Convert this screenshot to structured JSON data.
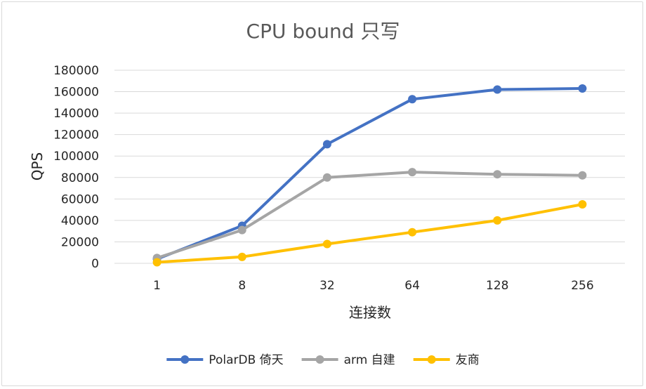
{
  "chart_data": {
    "type": "line",
    "title": "CPU bound 只写",
    "xlabel": "连接数",
    "ylabel": "QPS",
    "categories": [
      "1",
      "8",
      "32",
      "64",
      "128",
      "256"
    ],
    "ylim": [
      0,
      180000
    ],
    "yticks": [
      0,
      20000,
      40000,
      60000,
      80000,
      100000,
      120000,
      140000,
      160000,
      180000
    ],
    "ytick_labels": [
      "0",
      "20000",
      "40000",
      "60000",
      "80000",
      "100000",
      "120000",
      "140000",
      "160000",
      "180000"
    ],
    "grid": true,
    "legend_position": "bottom",
    "series": [
      {
        "name": "PolarDB 倚天",
        "color": "#4472C4",
        "values": [
          4000,
          35000,
          111000,
          153000,
          162000,
          163000
        ]
      },
      {
        "name": "arm 自建",
        "color": "#A5A5A5",
        "values": [
          5000,
          31000,
          80000,
          85000,
          83000,
          82000
        ]
      },
      {
        "name": "友商",
        "color": "#FFC000",
        "values": [
          1000,
          6000,
          18000,
          29000,
          40000,
          55000
        ]
      }
    ]
  }
}
